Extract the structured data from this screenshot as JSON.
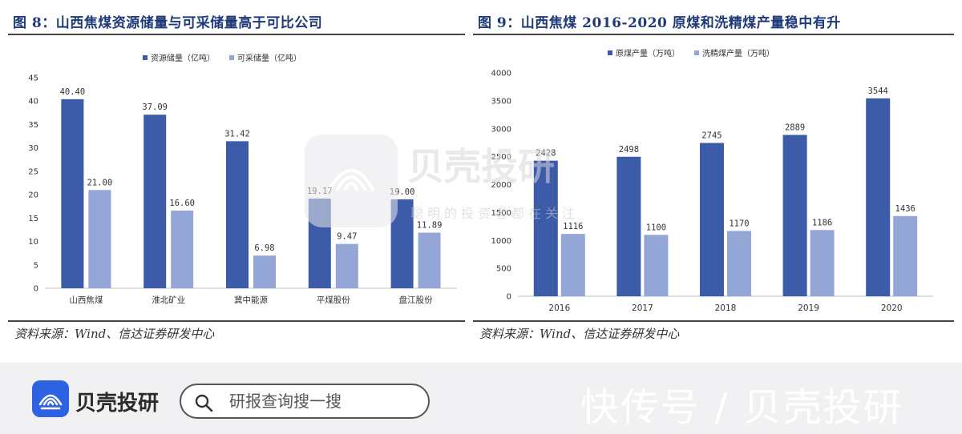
{
  "figures": [
    {
      "title": "图 8：山西焦煤资源储量与可采储量高于可比公司",
      "source": "资料来源：Wind、信达证券研发中心"
    },
    {
      "title": "图 9：山西焦煤 2016-2020 原煤和洗精煤产量稳中有升",
      "source": "资料来源：Wind、信达证券研发中心"
    }
  ],
  "chart_data": [
    {
      "type": "bar",
      "categories": [
        "山西焦煤",
        "淮北矿业",
        "冀中能源",
        "平煤股份",
        "盘江股份"
      ],
      "series": [
        {
          "name": "资源储量（亿吨）",
          "values": [
            40.4,
            37.09,
            31.42,
            19.17,
            19.0
          ],
          "labels": [
            "40.40",
            "37.09",
            "31.42",
            "19.17",
            "19.00"
          ],
          "color": "#3c5ba8"
        },
        {
          "name": "可采储量（亿吨）",
          "values": [
            21.0,
            16.6,
            6.98,
            9.47,
            11.89
          ],
          "labels": [
            "21.00",
            "16.60",
            "6.98",
            "9.47",
            "11.89"
          ],
          "color": "#94a6d6"
        }
      ],
      "ylim": [
        0,
        45
      ],
      "yticks": [
        0,
        5,
        10,
        15,
        20,
        25,
        30,
        35,
        40,
        45
      ],
      "legend": "top-center",
      "grid": false
    },
    {
      "type": "bar",
      "categories": [
        "2016",
        "2017",
        "2018",
        "2019",
        "2020"
      ],
      "series": [
        {
          "name": "原煤产量（万吨）",
          "values": [
            2428,
            2498,
            2745,
            2889,
            3544
          ],
          "labels": [
            "2428",
            "2498",
            "2745",
            "2889",
            "3544"
          ],
          "color": "#3c5ba8"
        },
        {
          "name": "洗精煤产量（万吨）",
          "values": [
            1116,
            1100,
            1170,
            1186,
            1436
          ],
          "labels": [
            "1116",
            "1100",
            "1170",
            "1186",
            "1436"
          ],
          "color": "#94a6d6"
        }
      ],
      "ylim": [
        0,
        4000
      ],
      "yticks": [
        0,
        500,
        1000,
        1500,
        2000,
        2500,
        3000,
        3500,
        4000
      ],
      "legend": "top-center",
      "grid": false
    }
  ],
  "watermark": {
    "brand": "贝壳投研",
    "tagline": "聪明的投资者都在关注"
  },
  "footer": {
    "brand": "贝壳投研",
    "search_placeholder": "研报查询搜一搜",
    "watermark": "快传号 / 贝壳投研"
  },
  "colors": {
    "primary": "#3c5ba8",
    "secondary": "#94a6d6",
    "brand_blue": "#2d63e3"
  },
  "icons": {
    "logo": "shell-fan-icon",
    "search": "search-icon"
  }
}
